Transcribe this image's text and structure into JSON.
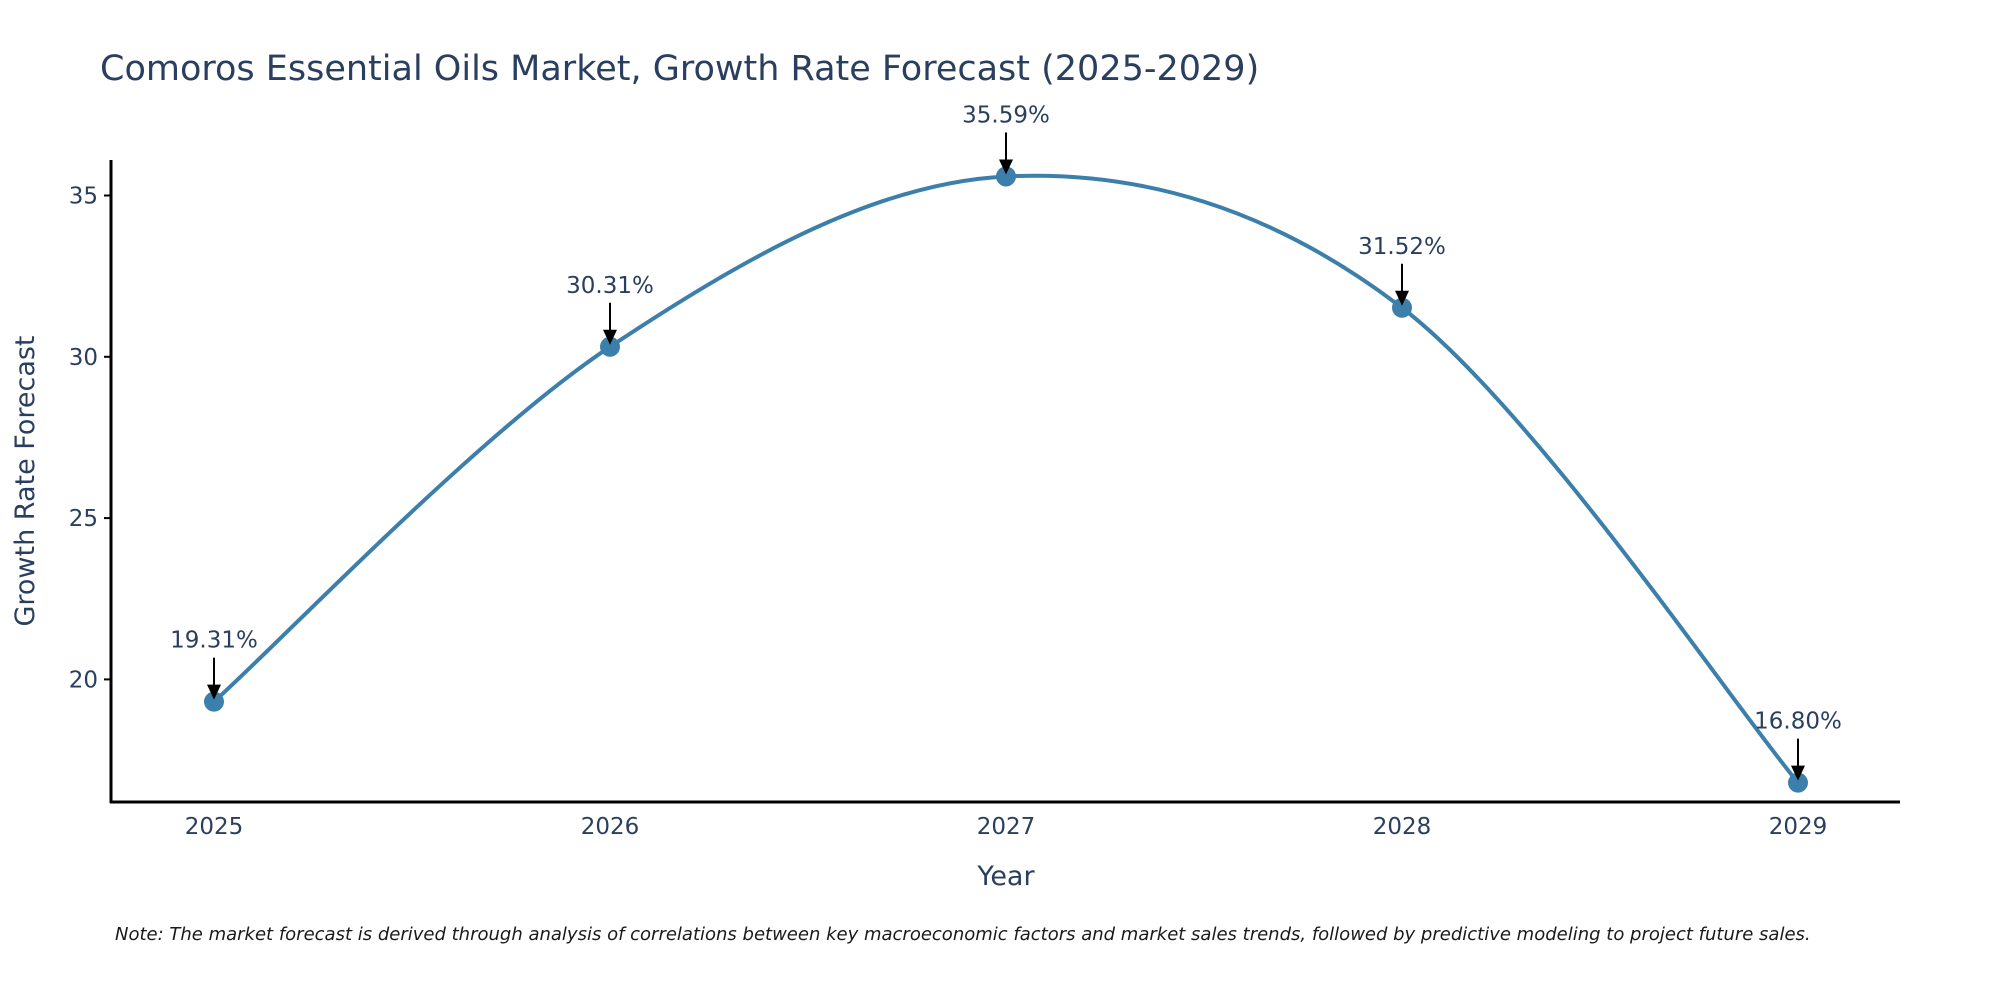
{
  "chart_data": {
    "type": "line",
    "title": "Comoros Essential Oils Market, Growth Rate Forecast (2025-2029)",
    "xlabel": "Year",
    "ylabel": "Growth Rate Forecast",
    "categories": [
      "2025",
      "2026",
      "2027",
      "2028",
      "2029"
    ],
    "series": [
      {
        "name": "Growth Rate Forecast",
        "values": [
          19.31,
          30.31,
          35.59,
          31.52,
          16.8
        ],
        "labels": [
          "19.31%",
          "30.31%",
          "35.59%",
          "31.52%",
          "16.80%"
        ]
      }
    ],
    "ylim": [
      16.2,
      36.1
    ],
    "yticks": [
      20,
      25,
      30,
      35
    ],
    "ytick_labels": [
      "20",
      "25",
      "30",
      "35"
    ],
    "grid": false,
    "line_shape": "spline",
    "colors": {
      "line": "#3d7fab",
      "marker": "#3d7fab",
      "arrow": "#000000",
      "axis": "#000000",
      "text": "#2a3f5f"
    },
    "note": "Note: The market forecast is derived through analysis of correlations between key macroeconomic factors and market sales trends, followed by predictive modeling to project future sales."
  }
}
